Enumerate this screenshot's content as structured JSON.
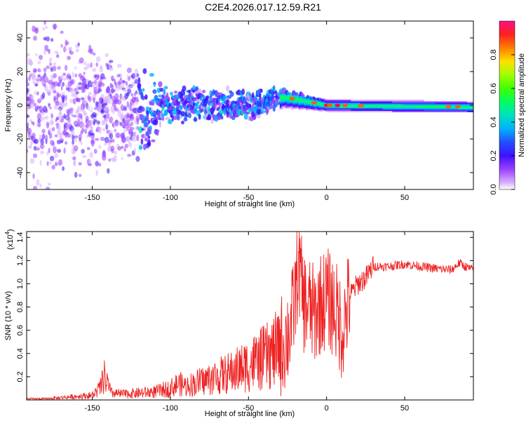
{
  "title": "C2E4.2026.017.12.59.R21",
  "chart_data": [
    {
      "type": "heatmap",
      "title": "C2E4.2026.017.12.59.R21",
      "xlabel": "Height of straight line (km)",
      "ylabel": "Frequency (Hz)",
      "xlim": [
        -192,
        94
      ],
      "ylim": [
        -50,
        50
      ],
      "xticks": [
        -150,
        -100,
        -50,
        0,
        50
      ],
      "yticks": [
        -40,
        -20,
        0,
        20,
        40
      ],
      "colorbar": {
        "label": "Normalized spectral amplitude",
        "range": [
          0,
          1
        ],
        "ticks": [
          0.0,
          0.2,
          0.4,
          0.6,
          0.8
        ],
        "colormap": [
          "#ffffff",
          "#c080ff",
          "#8000ff",
          "#2020ff",
          "#00c0ff",
          "#00ff80",
          "#40ff00",
          "#c0ff00",
          "#ffc000",
          "#ff4000",
          "#ff0080"
        ]
      },
      "description_points": [
        {
          "x": -180,
          "center": 0,
          "spread": 45
        },
        {
          "x": -120,
          "center": -5,
          "spread": 25
        },
        {
          "x": -100,
          "center": 0,
          "spread": 10
        },
        {
          "x": -50,
          "center": 0,
          "spread": 8
        },
        {
          "x": -28,
          "center": 5,
          "spread": 5
        },
        {
          "x": 0,
          "center": 0,
          "spread": 2
        },
        {
          "x": 94,
          "center": -1,
          "spread": 2
        }
      ]
    },
    {
      "type": "line",
      "xlabel": "Height of straight line (km)",
      "ylabel": "SNR (10 * v/v)",
      "yscale_label": "(x10",
      "yscale_exp": "4",
      "xlim": [
        -192,
        94
      ],
      "ylim": [
        0,
        1.45
      ],
      "xticks": [
        -150,
        -100,
        -50,
        0,
        50
      ],
      "yticks": [
        0.2,
        0.4,
        0.6,
        0.8,
        1.0,
        1.2,
        1.4
      ],
      "color": "#ee2222",
      "series": [
        {
          "name": "SNR",
          "x": [
            -192,
            -180,
            -170,
            -160,
            -150,
            -145,
            -142,
            -138,
            -130,
            -120,
            -110,
            -100,
            -95,
            -90,
            -80,
            -70,
            -60,
            -50,
            -45,
            -40,
            -35,
            -30,
            -25,
            -22,
            -20,
            -18,
            -15,
            -12,
            -10,
            -8,
            -5,
            -2,
            0,
            5,
            10,
            15,
            20,
            25,
            30,
            40,
            50,
            60,
            70,
            80,
            85,
            90,
            94
          ],
          "values": [
            0.01,
            0.01,
            0.02,
            0.03,
            0.04,
            0.1,
            0.2,
            0.06,
            0.05,
            0.06,
            0.07,
            0.1,
            0.14,
            0.12,
            0.16,
            0.2,
            0.24,
            0.3,
            0.33,
            0.36,
            0.4,
            0.45,
            0.55,
            0.7,
            0.9,
            1.2,
            0.85,
            0.8,
            0.78,
            0.72,
            0.82,
            0.85,
            0.88,
            0.8,
            0.6,
            0.9,
            1.0,
            1.05,
            1.15,
            1.15,
            1.17,
            1.15,
            1.13,
            1.12,
            1.18,
            1.14,
            1.12
          ]
        }
      ]
    }
  ]
}
